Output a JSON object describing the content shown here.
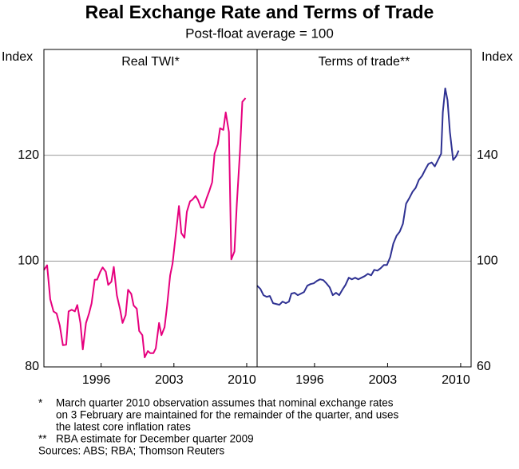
{
  "title": "Real Exchange Rate and Terms of Trade",
  "subtitle": "Post-float average = 100",
  "notes": [
    {
      "marker": "*",
      "lines": [
        "March quarter 2010 observation assumes that nominal exchange rates",
        "on 3 February are maintained for the remainder of the quarter, and uses",
        "the latest core inflation rates"
      ]
    },
    {
      "marker": "**",
      "lines": [
        "RBA estimate for December quarter 2009"
      ]
    }
  ],
  "sources": "Sources: ABS; RBA; Thomson Reuters",
  "chart_data": [
    {
      "type": "line",
      "title": "Real TWI*",
      "ylabel": "Index",
      "yaxis_side": "left",
      "grid": true,
      "xlim": [
        1990.5,
        2011
      ],
      "xticks": [
        1996,
        2003,
        2010
      ],
      "ylim": [
        80,
        140
      ],
      "yticks": [
        80,
        100,
        120
      ],
      "x": [
        1990.5,
        1990.81,
        1991.11,
        1991.42,
        1991.72,
        1992.03,
        1992.33,
        1992.64,
        1992.87,
        1993.17,
        1993.48,
        1993.71,
        1994.01,
        1994.24,
        1994.55,
        1994.85,
        1995.08,
        1995.39,
        1995.61,
        1995.92,
        1996.15,
        1996.45,
        1996.68,
        1996.99,
        1997.22,
        1997.52,
        1997.83,
        1998.06,
        1998.36,
        1998.59,
        1998.9,
        1999.13,
        1999.43,
        1999.66,
        1999.97,
        2000.19,
        2000.5,
        2000.73,
        2001.03,
        2001.26,
        2001.57,
        2001.8,
        2002.1,
        2002.33,
        2002.64,
        2002.87,
        2003.17,
        2003.48,
        2003.71,
        2004.01,
        2004.24,
        2004.55,
        2004.77,
        2005.08,
        2005.31,
        2005.61,
        2005.84,
        2006.15,
        2006.38,
        2006.68,
        2006.91,
        2007.22,
        2007.44,
        2007.75,
        2007.98,
        2008.29,
        2008.52,
        2008.82,
        2009.05,
        2009.35,
        2009.58,
        2009.89
      ],
      "series": [
        {
          "color": "#e6007e",
          "values": [
            98.3,
            99.2,
            92.8,
            90.5,
            90.1,
            87.8,
            84.1,
            84.2,
            90.5,
            90.8,
            90.5,
            91.7,
            88.3,
            83.3,
            88.3,
            90.2,
            92,
            96.5,
            96.5,
            98,
            98.8,
            98,
            95.5,
            96.1,
            98.9,
            93.5,
            90.8,
            88.3,
            89.8,
            94.6,
            93.8,
            91.6,
            91,
            86.8,
            86,
            81.8,
            83,
            82.6,
            82.6,
            83.5,
            88.3,
            86,
            87.5,
            91.3,
            97.3,
            99.5,
            104.8,
            110.4,
            105.3,
            104.4,
            109.3,
            111.3,
            111.6,
            112.3,
            111.6,
            110.1,
            110.1,
            111.9,
            113.1,
            114.9,
            120.3,
            122.1,
            125.1,
            124.8,
            128.1,
            124.4,
            100.3,
            101.8,
            110.8,
            120.6,
            130.1,
            130.8
          ]
        }
      ]
    },
    {
      "type": "line",
      "title": "Terms of trade**",
      "ylabel": "Index",
      "yaxis_side": "right",
      "grid": true,
      "xlim": [
        1990.5,
        2011
      ],
      "xticks": [
        1996,
        2003,
        2010
      ],
      "ylim": [
        60,
        180
      ],
      "yticks": [
        60,
        100,
        140
      ],
      "x": [
        1990.5,
        1990.81,
        1991.11,
        1991.42,
        1991.72,
        1992.03,
        1992.33,
        1992.64,
        1992.94,
        1993.25,
        1993.55,
        1993.78,
        1994.09,
        1994.39,
        1994.7,
        1995,
        1995.31,
        1995.61,
        1995.92,
        1996.23,
        1996.53,
        1996.84,
        1997.14,
        1997.45,
        1997.75,
        1998.06,
        1998.36,
        1998.67,
        1998.97,
        1999.28,
        1999.58,
        1999.89,
        2000.19,
        2000.5,
        2000.81,
        2001.11,
        2001.42,
        2001.72,
        2002.03,
        2002.33,
        2002.64,
        2002.94,
        2003.25,
        2003.55,
        2003.86,
        2004.16,
        2004.47,
        2004.77,
        2005.08,
        2005.39,
        2005.69,
        2006,
        2006.3,
        2006.61,
        2006.91,
        2007.22,
        2007.53,
        2007.83,
        2008.13,
        2008.29,
        2008.52,
        2008.74,
        2008.97,
        2009.28,
        2009.58,
        2009.81
      ],
      "series": [
        {
          "color": "#2e3192",
          "values": [
            90.7,
            89.5,
            87.1,
            86.5,
            86.8,
            84.1,
            83.8,
            83.5,
            84.7,
            84.1,
            84.7,
            87.7,
            88,
            87.1,
            87.7,
            88.3,
            90.7,
            91.3,
            91.6,
            92.5,
            93.1,
            92.8,
            91.6,
            90.1,
            87.1,
            88,
            87.1,
            89.2,
            91,
            93.7,
            93.1,
            93.7,
            93.1,
            93.7,
            94.3,
            95.2,
            94.6,
            96.7,
            96.4,
            97.3,
            98.5,
            98.5,
            101.5,
            106.6,
            109.6,
            111.1,
            114.1,
            121.7,
            123.8,
            126.2,
            127.7,
            130.7,
            132.2,
            134.6,
            136.7,
            137.3,
            135.8,
            138.2,
            140.6,
            156.3,
            165.3,
            160.8,
            148.7,
            138.2,
            139.7,
            141.8
          ]
        }
      ]
    }
  ]
}
